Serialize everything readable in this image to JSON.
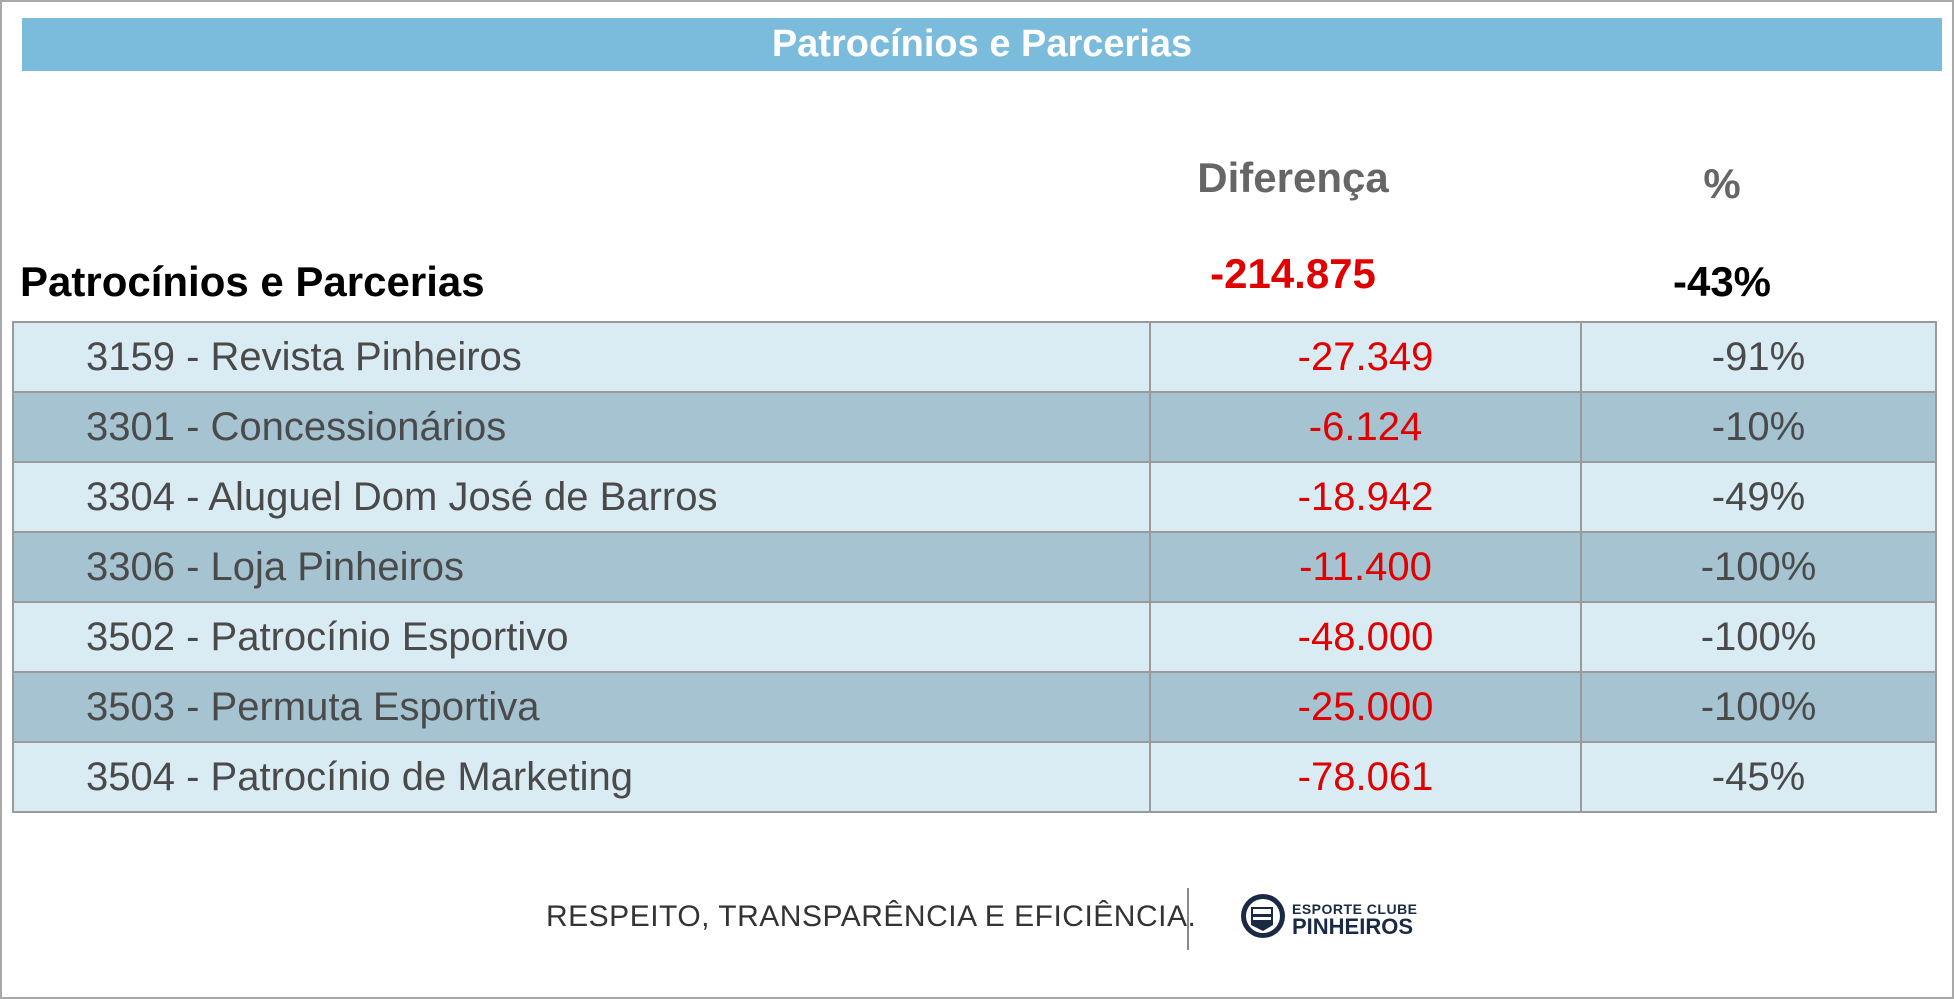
{
  "banner": {
    "title": "Patrocínios e Parcerias"
  },
  "headers": {
    "diff": "Diferença",
    "pct": "%"
  },
  "total": {
    "label": "Patrocínios e Parcerias",
    "diff": "-214.875",
    "pct": "-43%"
  },
  "rows": [
    {
      "name": "3159 - Revista Pinheiros",
      "diff": "-27.349",
      "pct": "-91%"
    },
    {
      "name": "3301 - Concessionários",
      "diff": "-6.124",
      "pct": "-10%"
    },
    {
      "name": "3304 - Aluguel Dom José de Barros",
      "diff": "-18.942",
      "pct": "-49%"
    },
    {
      "name": "3306 - Loja Pinheiros",
      "diff": "-11.400",
      "pct": "-100%"
    },
    {
      "name": "3502 - Patrocínio Esportivo",
      "diff": "-48.000",
      "pct": "-100%"
    },
    {
      "name": "3503 - Permuta Esportiva",
      "diff": "-25.000",
      "pct": "-100%"
    },
    {
      "name": "3504 - Patrocínio de Marketing",
      "diff": "-78.061",
      "pct": "-45%"
    }
  ],
  "footer": {
    "slogan": "RESPEITO, TRANSPARÊNCIA E EFICIÊNCIA.",
    "logo_line1": "ESPORTE CLUBE",
    "logo_line2": "PINHEIROS",
    "logo_icon": "club-crest-icon"
  },
  "colors": {
    "banner": "#7bbcdc",
    "negative": "#e00000",
    "row_light": "#d9ebf3",
    "row_dark": "#a6c3d1"
  }
}
